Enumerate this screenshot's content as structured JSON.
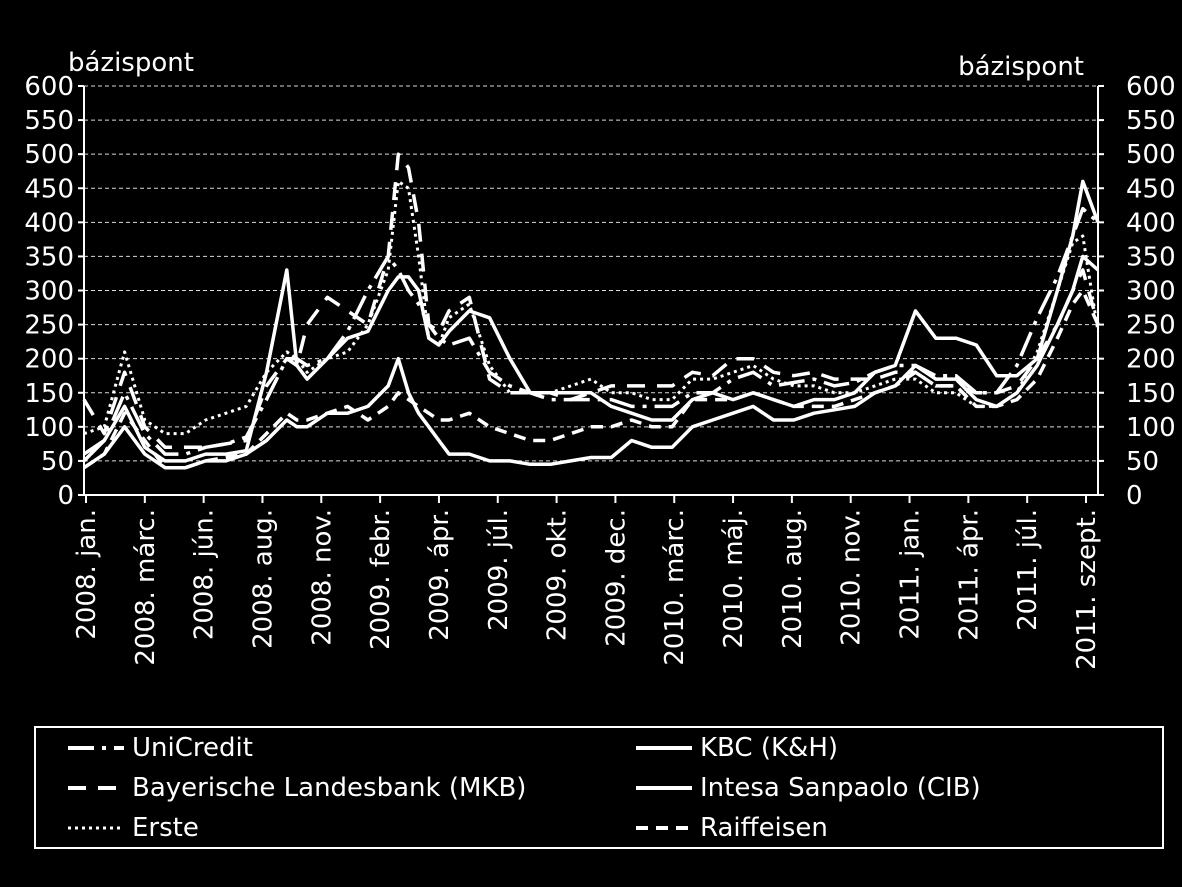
{
  "chart_data": {
    "type": "line",
    "ylabel_left": "bázispont",
    "ylabel_right": "bázispont",
    "ylim": [
      0,
      600
    ],
    "yticks": [
      0,
      50,
      100,
      150,
      200,
      250,
      300,
      350,
      400,
      450,
      500,
      550,
      600
    ],
    "xlim": [
      0,
      1.0
    ],
    "x_tick_labels": [
      "2008. jan.",
      "2008. márc.",
      "2008. jún.",
      "2008. aug.",
      "2008. nov.",
      "2009. febr.",
      "2009. ápr.",
      "2009. júl.",
      "2009. okt.",
      "2009. dec.",
      "2010. márc.",
      "2010. máj.",
      "2010. aug.",
      "2010. nov.",
      "2011. jan.",
      "2011. ápr.",
      "2011. júl.",
      "2011. szept."
    ],
    "grid": "horizontal dashed",
    "legend_position": "bottom",
    "series": [
      {
        "name": "UniCredit",
        "dash": "dashdot",
        "x": [
          0.0,
          0.02,
          0.04,
          0.06,
          0.08,
          0.1,
          0.12,
          0.14,
          0.16,
          0.18,
          0.2,
          0.21,
          0.22,
          0.24,
          0.26,
          0.28,
          0.3,
          0.31,
          0.32,
          0.33,
          0.34,
          0.35,
          0.36,
          0.38,
          0.4,
          0.42,
          0.44,
          0.46,
          0.48,
          0.5,
          0.52,
          0.54,
          0.56,
          0.58,
          0.6,
          0.62,
          0.64,
          0.66,
          0.68,
          0.7,
          0.72,
          0.74,
          0.76,
          0.78,
          0.8,
          0.82,
          0.84,
          0.86,
          0.88,
          0.9,
          0.92,
          0.94,
          0.96,
          0.975,
          0.985,
          1.0
        ],
        "y": [
          60,
          80,
          150,
          90,
          60,
          60,
          70,
          75,
          85,
          140,
          200,
          200,
          190,
          200,
          240,
          300,
          350,
          330,
          300,
          280,
          250,
          230,
          220,
          230,
          180,
          160,
          150,
          140,
          140,
          140,
          140,
          130,
          130,
          130,
          150,
          150,
          170,
          180,
          160,
          165,
          170,
          160,
          165,
          180,
          190,
          190,
          175,
          175,
          150,
          150,
          190,
          260,
          320,
          380,
          420,
          400
        ]
      },
      {
        "name": "KBC (K&H)",
        "dash": "solid",
        "x": [
          0.0,
          0.02,
          0.04,
          0.06,
          0.08,
          0.1,
          0.12,
          0.14,
          0.16,
          0.18,
          0.2,
          0.21,
          0.22,
          0.24,
          0.26,
          0.28,
          0.3,
          0.31,
          0.32,
          0.33,
          0.34,
          0.35,
          0.36,
          0.38,
          0.4,
          0.42,
          0.44,
          0.46,
          0.48,
          0.5,
          0.52,
          0.54,
          0.56,
          0.58,
          0.6,
          0.62,
          0.64,
          0.66,
          0.68,
          0.7,
          0.72,
          0.74,
          0.76,
          0.78,
          0.8,
          0.82,
          0.84,
          0.86,
          0.88,
          0.9,
          0.92,
          0.94,
          0.96,
          0.975,
          0.985,
          1.0
        ],
        "y": [
          50,
          80,
          130,
          70,
          50,
          50,
          60,
          60,
          65,
          180,
          330,
          190,
          170,
          200,
          230,
          240,
          300,
          320,
          320,
          300,
          230,
          220,
          240,
          270,
          260,
          200,
          150,
          150,
          150,
          150,
          130,
          120,
          110,
          110,
          140,
          150,
          140,
          150,
          140,
          130,
          140,
          140,
          150,
          180,
          190,
          270,
          230,
          230,
          220,
          175,
          175,
          200,
          300,
          380,
          460,
          400
        ]
      },
      {
        "name": "Bayerische Landesbank (MKB)",
        "dash": "dashed-long",
        "x": [
          0.0,
          0.02,
          0.04,
          0.06,
          0.08,
          0.1,
          0.12,
          0.14,
          0.16,
          0.18,
          0.2,
          0.21,
          0.22,
          0.24,
          0.26,
          0.28,
          0.3,
          0.31,
          0.32,
          0.33,
          0.34,
          0.35,
          0.36,
          0.38,
          0.4,
          0.42,
          0.44,
          0.46,
          0.48,
          0.5,
          0.52,
          0.54,
          0.56,
          0.58,
          0.6,
          0.62,
          0.64,
          0.66,
          0.68,
          0.7,
          0.72,
          0.74,
          0.76,
          0.78,
          0.8,
          0.82,
          0.84,
          0.86,
          0.88,
          0.9,
          0.92,
          0.94,
          0.96,
          0.975,
          0.985,
          1.0
        ],
        "y": [
          140,
          90,
          180,
          100,
          70,
          70,
          70,
          75,
          80,
          160,
          200,
          190,
          250,
          290,
          270,
          250,
          350,
          500,
          480,
          400,
          250,
          240,
          270,
          290,
          170,
          150,
          150,
          150,
          140,
          150,
          160,
          160,
          160,
          160,
          180,
          175,
          200,
          200,
          180,
          175,
          180,
          170,
          170,
          170,
          180,
          180,
          160,
          160,
          150,
          150,
          160,
          200,
          250,
          300,
          330,
          250
        ]
      },
      {
        "name": "Intesa Sanpaolo (CIB)",
        "dash": "solid",
        "x": [
          0.0,
          0.02,
          0.04,
          0.06,
          0.08,
          0.1,
          0.12,
          0.14,
          0.16,
          0.18,
          0.2,
          0.21,
          0.22,
          0.24,
          0.26,
          0.28,
          0.3,
          0.31,
          0.32,
          0.33,
          0.34,
          0.35,
          0.36,
          0.38,
          0.4,
          0.42,
          0.44,
          0.46,
          0.48,
          0.5,
          0.52,
          0.54,
          0.56,
          0.58,
          0.6,
          0.62,
          0.64,
          0.66,
          0.68,
          0.7,
          0.72,
          0.74,
          0.76,
          0.78,
          0.8,
          0.82,
          0.84,
          0.86,
          0.88,
          0.9,
          0.92,
          0.94,
          0.96,
          0.975,
          0.985,
          1.0
        ],
        "y": [
          40,
          60,
          100,
          60,
          40,
          40,
          50,
          50,
          60,
          80,
          110,
          100,
          100,
          120,
          120,
          130,
          160,
          200,
          150,
          120,
          100,
          80,
          60,
          60,
          50,
          50,
          45,
          45,
          50,
          55,
          55,
          80,
          70,
          70,
          100,
          110,
          120,
          130,
          110,
          110,
          120,
          125,
          130,
          150,
          160,
          190,
          170,
          170,
          140,
          130,
          150,
          190,
          250,
          300,
          350,
          330
        ]
      },
      {
        "name": "Erste",
        "dash": "dotted",
        "x": [
          0.0,
          0.02,
          0.04,
          0.06,
          0.08,
          0.1,
          0.12,
          0.14,
          0.16,
          0.18,
          0.2,
          0.21,
          0.22,
          0.24,
          0.26,
          0.28,
          0.3,
          0.31,
          0.32,
          0.33,
          0.34,
          0.35,
          0.36,
          0.38,
          0.4,
          0.42,
          0.44,
          0.46,
          0.48,
          0.5,
          0.52,
          0.54,
          0.56,
          0.58,
          0.6,
          0.62,
          0.64,
          0.66,
          0.68,
          0.7,
          0.72,
          0.74,
          0.76,
          0.78,
          0.8,
          0.82,
          0.84,
          0.86,
          0.88,
          0.9,
          0.92,
          0.94,
          0.96,
          0.975,
          0.985,
          1.0
        ],
        "y": [
          90,
          100,
          210,
          110,
          90,
          90,
          110,
          120,
          130,
          180,
          210,
          200,
          180,
          200,
          210,
          250,
          330,
          460,
          450,
          350,
          230,
          220,
          260,
          280,
          190,
          150,
          150,
          150,
          160,
          170,
          150,
          150,
          140,
          140,
          170,
          170,
          180,
          190,
          170,
          160,
          160,
          150,
          150,
          160,
          170,
          170,
          150,
          150,
          130,
          130,
          150,
          210,
          300,
          370,
          380,
          240
        ]
      },
      {
        "name": "Raiffeisen",
        "dash": "dashed-short",
        "x": [
          0.0,
          0.02,
          0.04,
          0.06,
          0.08,
          0.1,
          0.12,
          0.14,
          0.16,
          0.18,
          0.2,
          0.21,
          0.22,
          0.24,
          0.26,
          0.28,
          0.3,
          0.31,
          0.32,
          0.33,
          0.34,
          0.35,
          0.36,
          0.38,
          0.4,
          0.42,
          0.44,
          0.46,
          0.48,
          0.5,
          0.52,
          0.54,
          0.56,
          0.58,
          0.6,
          0.62,
          0.64,
          0.66,
          0.68,
          0.7,
          0.72,
          0.74,
          0.76,
          0.78,
          0.8,
          0.82,
          0.84,
          0.86,
          0.88,
          0.9,
          0.92,
          0.94,
          0.96,
          0.975,
          0.985,
          1.0
        ],
        "y": [
          40,
          60,
          120,
          80,
          40,
          40,
          50,
          55,
          60,
          90,
          120,
          110,
          110,
          120,
          130,
          110,
          130,
          150,
          140,
          130,
          120,
          110,
          110,
          120,
          100,
          90,
          80,
          80,
          90,
          100,
          100,
          110,
          100,
          100,
          140,
          140,
          140,
          150,
          140,
          130,
          130,
          130,
          140,
          150,
          160,
          180,
          160,
          160,
          130,
          130,
          140,
          170,
          230,
          280,
          300,
          250
        ]
      }
    ]
  }
}
